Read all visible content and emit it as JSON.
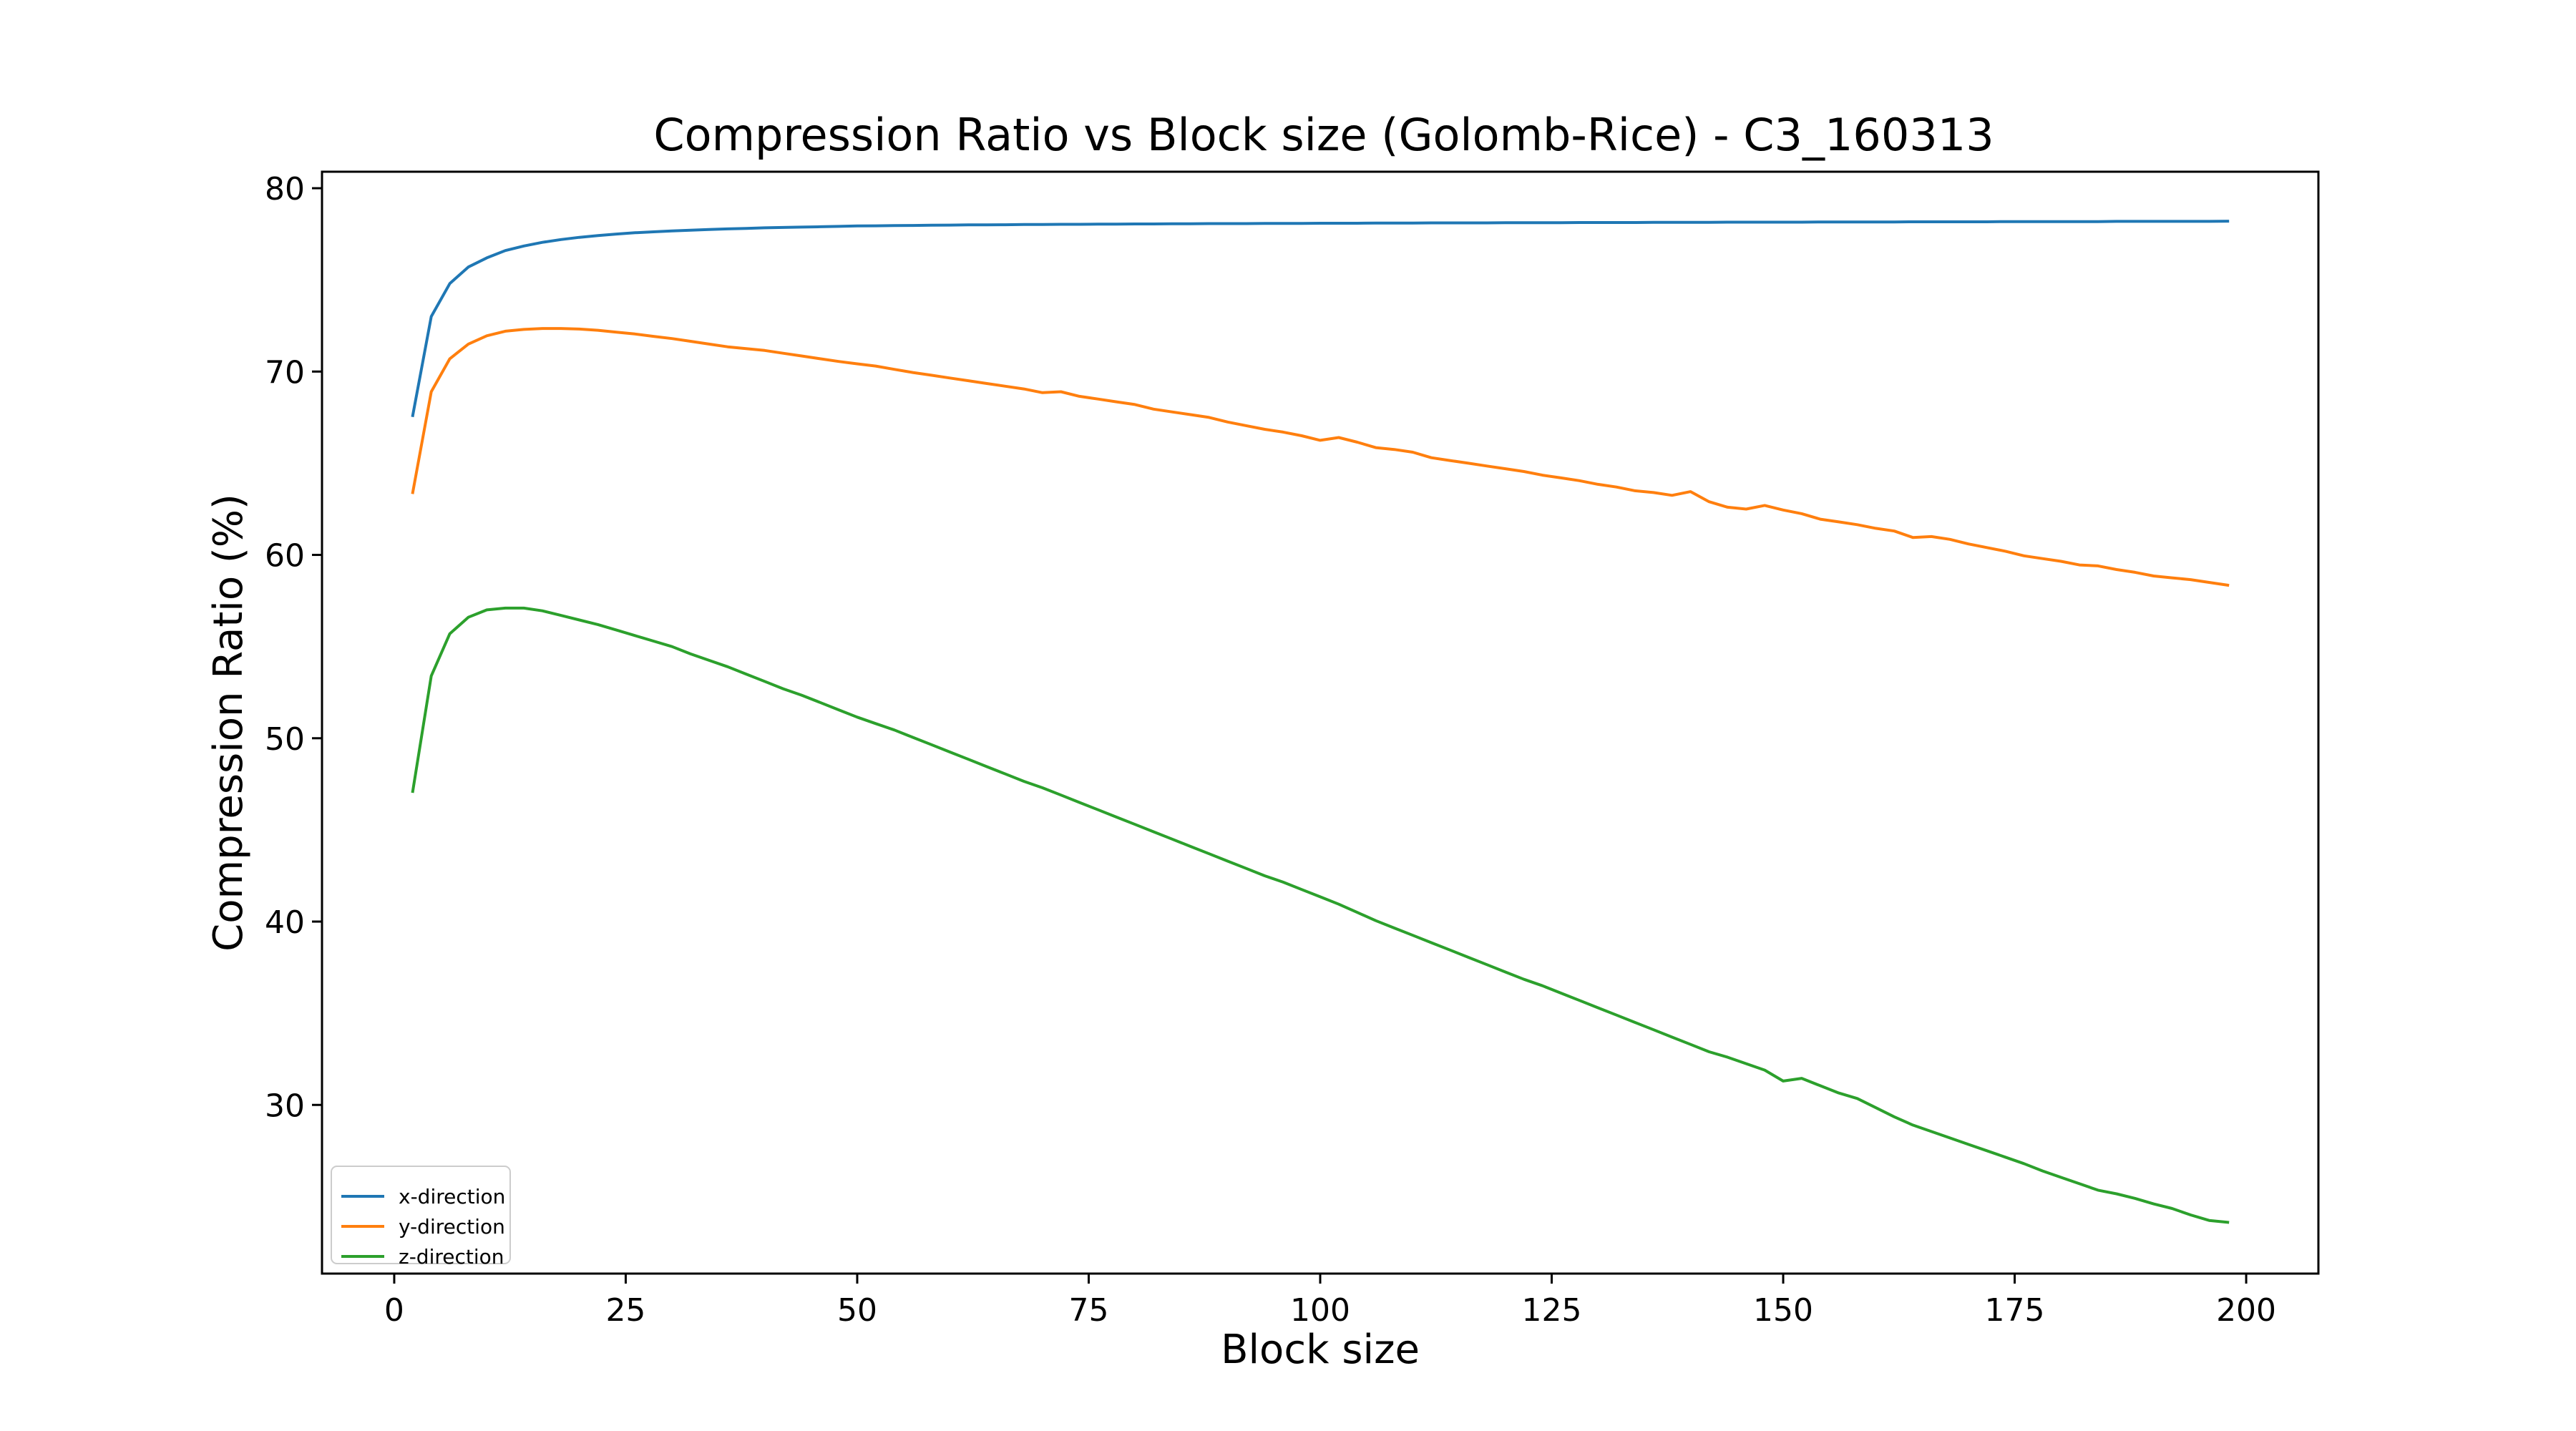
{
  "chart_data": {
    "type": "line",
    "title": "Compression Ratio vs Block size (Golomb-Rice) - C3_160313",
    "xlabel": "Block size",
    "ylabel": "Compression Ratio (%)",
    "xlim": [
      -7.8,
      207.8
    ],
    "ylim": [
      20.8,
      80.9
    ],
    "xticks": [
      0,
      25,
      50,
      75,
      100,
      125,
      150,
      175,
      200
    ],
    "yticks": [
      30,
      40,
      50,
      60,
      70,
      80
    ],
    "grid": false,
    "legend_position": "lower-left",
    "x": [
      2,
      4,
      6,
      8,
      10,
      12,
      14,
      16,
      18,
      20,
      22,
      24,
      26,
      28,
      30,
      32,
      34,
      36,
      38,
      40,
      42,
      44,
      46,
      48,
      50,
      52,
      54,
      56,
      58,
      60,
      62,
      64,
      66,
      68,
      70,
      72,
      74,
      76,
      78,
      80,
      82,
      84,
      86,
      88,
      90,
      92,
      94,
      96,
      98,
      100,
      102,
      104,
      106,
      108,
      110,
      112,
      114,
      116,
      118,
      120,
      122,
      124,
      126,
      128,
      130,
      132,
      134,
      136,
      138,
      140,
      142,
      144,
      146,
      148,
      150,
      152,
      154,
      156,
      158,
      160,
      162,
      164,
      166,
      168,
      170,
      172,
      174,
      176,
      178,
      180,
      182,
      184,
      186,
      188,
      190,
      192,
      194,
      196,
      198
    ],
    "series": [
      {
        "name": "x-direction",
        "color": "#1f77b4",
        "values": [
          67.6,
          73.0,
          74.8,
          75.7,
          76.2,
          76.6,
          76.85,
          77.05,
          77.2,
          77.32,
          77.42,
          77.5,
          77.57,
          77.62,
          77.67,
          77.71,
          77.75,
          77.78,
          77.81,
          77.84,
          77.86,
          77.88,
          77.9,
          77.92,
          77.94,
          77.95,
          77.96,
          77.97,
          77.98,
          77.99,
          78.0,
          78.0,
          78.01,
          78.02,
          78.02,
          78.03,
          78.03,
          78.04,
          78.04,
          78.05,
          78.05,
          78.06,
          78.06,
          78.07,
          78.07,
          78.07,
          78.08,
          78.08,
          78.08,
          78.09,
          78.09,
          78.09,
          78.1,
          78.1,
          78.1,
          78.11,
          78.11,
          78.11,
          78.11,
          78.12,
          78.12,
          78.12,
          78.12,
          78.13,
          78.13,
          78.13,
          78.13,
          78.14,
          78.14,
          78.14,
          78.14,
          78.15,
          78.15,
          78.15,
          78.15,
          78.15,
          78.16,
          78.16,
          78.16,
          78.16,
          78.16,
          78.17,
          78.17,
          78.17,
          78.17,
          78.17,
          78.18,
          78.18,
          78.18,
          78.18,
          78.18,
          78.18,
          78.19,
          78.19,
          78.19,
          78.19,
          78.19,
          78.19,
          78.2
        ]
      },
      {
        "name": "y-direction",
        "color": "#ff7f0e",
        "values": [
          63.4,
          68.9,
          70.7,
          71.5,
          71.95,
          72.2,
          72.3,
          72.35,
          72.35,
          72.32,
          72.25,
          72.15,
          72.05,
          71.92,
          71.8,
          71.65,
          71.5,
          71.35,
          71.25,
          71.15,
          71.0,
          70.85,
          70.7,
          70.55,
          70.42,
          70.3,
          70.12,
          69.95,
          69.8,
          69.65,
          69.5,
          69.35,
          69.2,
          69.05,
          68.85,
          68.9,
          68.65,
          68.5,
          68.35,
          68.2,
          67.95,
          67.8,
          67.65,
          67.5,
          67.25,
          67.05,
          66.85,
          66.7,
          66.5,
          66.25,
          66.4,
          66.15,
          65.85,
          65.75,
          65.6,
          65.3,
          65.15,
          65.0,
          64.85,
          64.7,
          64.55,
          64.35,
          64.2,
          64.05,
          63.85,
          63.7,
          63.5,
          63.4,
          63.25,
          63.45,
          62.9,
          62.6,
          62.5,
          62.7,
          62.45,
          62.25,
          61.95,
          61.8,
          61.65,
          61.45,
          61.3,
          60.95,
          61.0,
          60.85,
          60.6,
          60.4,
          60.2,
          59.95,
          59.8,
          59.65,
          59.45,
          59.4,
          59.2,
          59.05,
          58.85,
          58.75,
          58.65,
          58.5,
          58.35
        ]
      },
      {
        "name": "z-direction",
        "color": "#2ca02c",
        "values": [
          47.1,
          53.4,
          55.7,
          56.6,
          57.0,
          57.1,
          57.1,
          56.95,
          56.7,
          56.45,
          56.2,
          55.9,
          55.6,
          55.3,
          55.0,
          54.6,
          54.25,
          53.9,
          53.5,
          53.1,
          52.7,
          52.35,
          51.95,
          51.55,
          51.15,
          50.8,
          50.45,
          50.05,
          49.65,
          49.25,
          48.85,
          48.45,
          48.05,
          47.65,
          47.3,
          46.9,
          46.5,
          46.1,
          45.7,
          45.3,
          44.9,
          44.5,
          44.1,
          43.7,
          43.3,
          42.9,
          42.5,
          42.15,
          41.75,
          41.35,
          40.95,
          40.5,
          40.05,
          39.65,
          39.25,
          38.85,
          38.45,
          38.05,
          37.65,
          37.25,
          36.85,
          36.5,
          36.1,
          35.7,
          35.3,
          34.9,
          34.5,
          34.1,
          33.7,
          33.3,
          32.9,
          32.6,
          32.25,
          31.9,
          31.3,
          31.45,
          31.05,
          30.65,
          30.35,
          29.85,
          29.35,
          28.9,
          28.55,
          28.2,
          27.85,
          27.5,
          27.15,
          26.8,
          26.4,
          26.05,
          25.7,
          25.35,
          25.15,
          24.9,
          24.6,
          24.35,
          24.0,
          23.7,
          23.6
        ]
      }
    ]
  }
}
